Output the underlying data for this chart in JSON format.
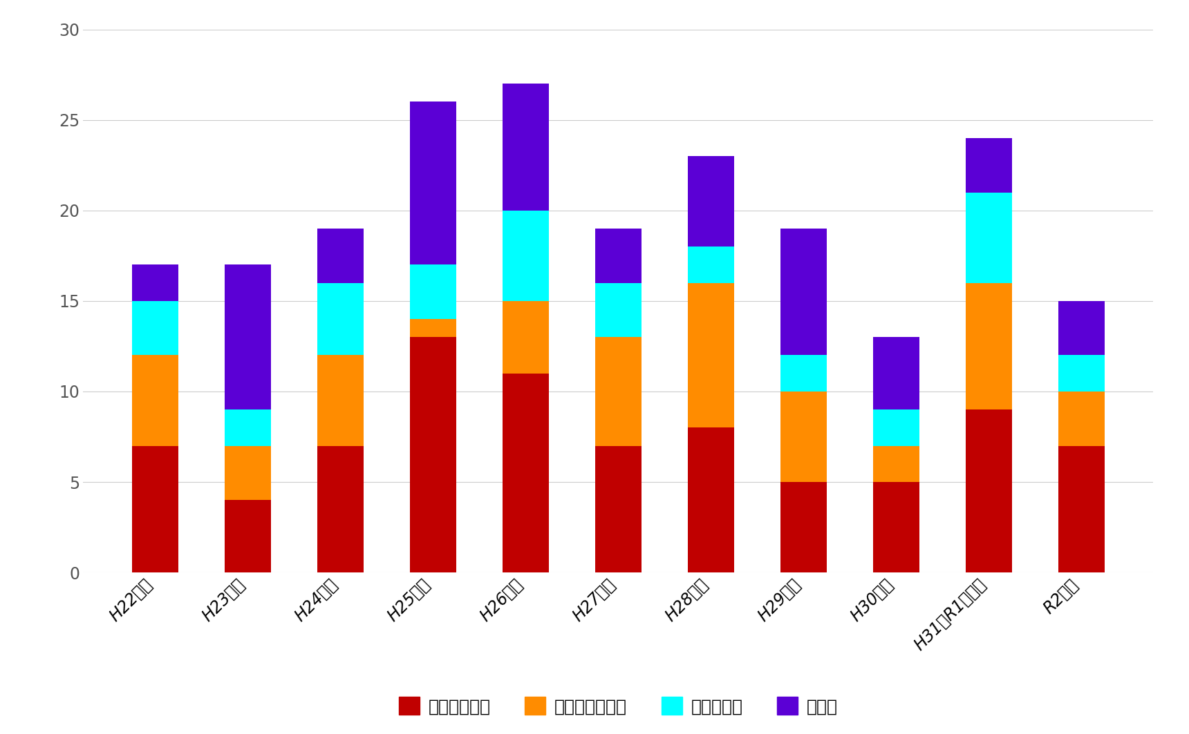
{
  "categories": [
    "H22年度",
    "H23年度",
    "H24年度",
    "H25年度",
    "H26年度",
    "H27年度",
    "H28年度",
    "H29年度",
    "H30年度",
    "H31（R1）年度",
    "R2年度"
  ],
  "series": {
    "縄文杯ルート": [
      7,
      4,
      7,
      13,
      11,
      7,
      8,
      5,
      5,
      9,
      7
    ],
    "宮之浦岳ルート": [
      5,
      3,
      5,
      1,
      4,
      6,
      8,
      5,
      2,
      7,
      3
    ],
    "白谷雲水峻": [
      3,
      2,
      4,
      3,
      5,
      3,
      2,
      2,
      2,
      5,
      2
    ],
    "その他": [
      2,
      8,
      3,
      9,
      7,
      3,
      5,
      7,
      4,
      3,
      3
    ]
  },
  "colors": {
    "縄文杯ルート": "#C00000",
    "宮之浦岳ルート": "#FF8C00",
    "白谷雲水峻": "#00FFFF",
    "その他": "#5B00D5"
  },
  "ylim": [
    0,
    30
  ],
  "yticks": [
    0,
    5,
    10,
    15,
    20,
    25,
    30
  ],
  "background_color": "#FFFFFF",
  "grid_color": "#CCCCCC",
  "bar_width": 0.5,
  "legend_fontsize": 18,
  "tick_fontsize": 17,
  "figsize": [
    17.2,
    10.63
  ],
  "dpi": 100
}
